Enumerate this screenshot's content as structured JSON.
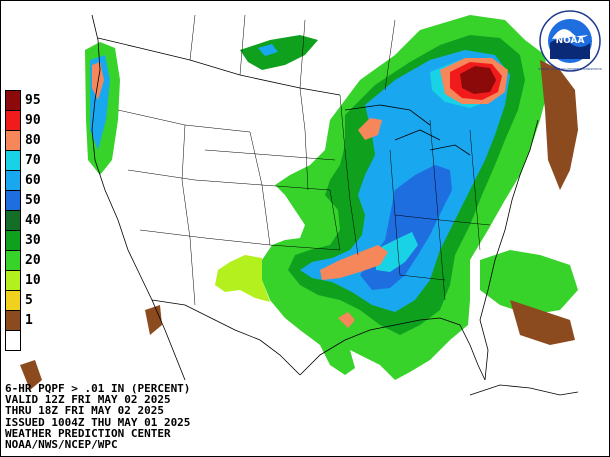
{
  "legend": {
    "items": [
      {
        "label": "95",
        "color": "#8c0a0a"
      },
      {
        "label": "90",
        "color": "#f21b1b"
      },
      {
        "label": "80",
        "color": "#f5875a"
      },
      {
        "label": "70",
        "color": "#19d2e6"
      },
      {
        "label": "60",
        "color": "#19a8f0"
      },
      {
        "label": "50",
        "color": "#1f6ee0"
      },
      {
        "label": "40",
        "color": "#146e28"
      },
      {
        "label": "30",
        "color": "#0fa01e"
      },
      {
        "label": "20",
        "color": "#37d22a"
      },
      {
        "label": "10",
        "color": "#b4f01e"
      },
      {
        "label": "5",
        "color": "#f0d21e"
      },
      {
        "label": "1",
        "color": "#8c4b1e"
      },
      {
        "label": "",
        "color": "#ffffff"
      }
    ]
  },
  "caption": {
    "line1": "6-HR PQPF > .01 IN (PERCENT)",
    "line2": "VALID 12Z FRI MAY 02 2025",
    "line3": "THRU 18Z FRI MAY 02 2025",
    "line4": "ISSUED 1004Z THU MAY 01 2025",
    "line5": "WEATHER PREDICTION CENTER",
    "line6": "NOAA/NWS/NCEP/WPC"
  },
  "logo": {
    "text": "NOAA",
    "ring_text": "NATIONAL OCEANIC AND ATMOSPHERIC ADMINISTRATION"
  },
  "colors": {
    "outline": "#000000",
    "background": "#ffffff"
  }
}
